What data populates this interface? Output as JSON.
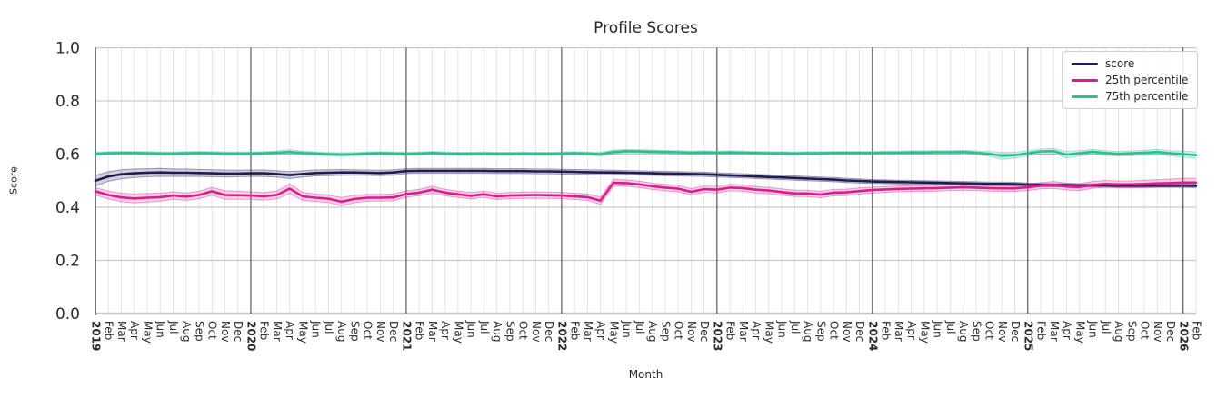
{
  "chart_data": {
    "type": "line",
    "title": "Profile Scores",
    "xlabel": "Month",
    "ylabel": "Score",
    "ylim": [
      0.0,
      1.0
    ],
    "yticks": [
      0.0,
      0.2,
      0.4,
      0.6,
      0.8,
      1.0
    ],
    "grid": true,
    "legend_position": "upper right",
    "x_labels": [
      "2019",
      "Feb",
      "Mar",
      "Apr",
      "May",
      "Jun",
      "Jul",
      "Aug",
      "Sep",
      "Oct",
      "Nov",
      "Dec",
      "2020",
      "Feb",
      "Mar",
      "Apr",
      "May",
      "Jun",
      "Jul",
      "Aug",
      "Sep",
      "Oct",
      "Nov",
      "Dec",
      "2021",
      "Feb",
      "Mar",
      "Apr",
      "May",
      "Jun",
      "Jul",
      "Aug",
      "Sep",
      "Oct",
      "Nov",
      "Dec",
      "2022",
      "Feb",
      "Mar",
      "Apr",
      "May",
      "Jun",
      "Jul",
      "Aug",
      "Sep",
      "Oct",
      "Nov",
      "Dec",
      "2023",
      "Feb",
      "Mar",
      "Apr",
      "May",
      "Jun",
      "Jul",
      "Aug",
      "Sep",
      "Oct",
      "Nov",
      "Dec",
      "2024",
      "Feb",
      "Mar",
      "Apr",
      "May",
      "Jun",
      "Jul",
      "Aug",
      "Sep",
      "Oct",
      "Nov",
      "Dec",
      "2025",
      "Feb",
      "Mar",
      "Apr",
      "May",
      "Jun",
      "Jul",
      "Aug",
      "Sep",
      "Oct",
      "Nov",
      "Dec",
      "2026",
      "Feb"
    ],
    "year_line_indices": [
      12,
      24,
      36,
      48,
      60,
      72,
      84
    ],
    "series": [
      {
        "name": "score",
        "color": "#1e1c52",
        "values": [
          0.5,
          0.516,
          0.524,
          0.528,
          0.53,
          0.531,
          0.53,
          0.53,
          0.529,
          0.528,
          0.527,
          0.527,
          0.528,
          0.528,
          0.525,
          0.521,
          0.525,
          0.529,
          0.53,
          0.531,
          0.531,
          0.53,
          0.529,
          0.531,
          0.536,
          0.537,
          0.537,
          0.537,
          0.537,
          0.537,
          0.537,
          0.536,
          0.536,
          0.536,
          0.535,
          0.535,
          0.534,
          0.533,
          0.532,
          0.531,
          0.531,
          0.53,
          0.529,
          0.528,
          0.527,
          0.526,
          0.525,
          0.524,
          0.522,
          0.52,
          0.518,
          0.516,
          0.514,
          0.512,
          0.51,
          0.508,
          0.506,
          0.504,
          0.501,
          0.499,
          0.497,
          0.496,
          0.495,
          0.494,
          0.493,
          0.492,
          0.491,
          0.49,
          0.489,
          0.488,
          0.488,
          0.487,
          0.485,
          0.484,
          0.483,
          0.483,
          0.482,
          0.482,
          0.482,
          0.481,
          0.481,
          0.481,
          0.481,
          0.481,
          0.481,
          0.48
        ],
        "band_halfwidth": [
          0.02,
          0.018,
          0.017,
          0.016,
          0.015,
          0.015,
          0.014,
          0.014,
          0.013,
          0.013,
          0.013,
          0.012,
          0.012,
          0.012,
          0.012,
          0.013,
          0.012,
          0.011,
          0.011,
          0.011,
          0.01,
          0.01,
          0.01,
          0.01,
          0.009,
          0.009,
          0.009,
          0.009,
          0.009,
          0.009,
          0.009,
          0.009,
          0.009,
          0.009,
          0.009,
          0.009,
          0.009,
          0.009,
          0.009,
          0.009,
          0.008,
          0.008,
          0.008,
          0.008,
          0.008,
          0.008,
          0.008,
          0.008,
          0.008,
          0.008,
          0.008,
          0.008,
          0.008,
          0.008,
          0.008,
          0.008,
          0.008,
          0.008,
          0.008,
          0.008,
          0.007,
          0.007,
          0.007,
          0.007,
          0.007,
          0.007,
          0.007,
          0.007,
          0.007,
          0.007,
          0.007,
          0.007,
          0.006,
          0.006,
          0.006,
          0.006,
          0.006,
          0.006,
          0.006,
          0.006,
          0.006,
          0.006,
          0.006,
          0.006,
          0.006,
          0.006
        ]
      },
      {
        "name": "25th percentile",
        "color": "#d81e8c",
        "values": [
          0.46,
          0.446,
          0.437,
          0.433,
          0.436,
          0.438,
          0.444,
          0.44,
          0.446,
          0.46,
          0.446,
          0.445,
          0.444,
          0.441,
          0.446,
          0.47,
          0.441,
          0.436,
          0.432,
          0.421,
          0.431,
          0.436,
          0.436,
          0.437,
          0.45,
          0.455,
          0.466,
          0.455,
          0.449,
          0.443,
          0.449,
          0.441,
          0.444,
          0.445,
          0.446,
          0.445,
          0.444,
          0.441,
          0.438,
          0.425,
          0.492,
          0.491,
          0.486,
          0.479,
          0.474,
          0.47,
          0.458,
          0.468,
          0.466,
          0.474,
          0.472,
          0.466,
          0.463,
          0.457,
          0.452,
          0.452,
          0.448,
          0.455,
          0.456,
          0.461,
          0.465,
          0.467,
          0.469,
          0.47,
          0.471,
          0.472,
          0.474,
          0.475,
          0.474,
          0.472,
          0.471,
          0.471,
          0.475,
          0.481,
          0.484,
          0.478,
          0.476,
          0.484,
          0.488,
          0.486,
          0.486,
          0.488,
          0.49,
          0.491,
          0.493,
          0.493
        ],
        "band_halfwidth": [
          0.014,
          0.015,
          0.016,
          0.017,
          0.016,
          0.015,
          0.014,
          0.014,
          0.014,
          0.015,
          0.016,
          0.015,
          0.014,
          0.014,
          0.015,
          0.018,
          0.015,
          0.014,
          0.014,
          0.016,
          0.014,
          0.013,
          0.013,
          0.013,
          0.012,
          0.012,
          0.013,
          0.012,
          0.012,
          0.012,
          0.012,
          0.012,
          0.012,
          0.012,
          0.012,
          0.012,
          0.012,
          0.012,
          0.012,
          0.014,
          0.013,
          0.012,
          0.012,
          0.012,
          0.012,
          0.012,
          0.012,
          0.012,
          0.012,
          0.012,
          0.012,
          0.012,
          0.012,
          0.012,
          0.012,
          0.012,
          0.012,
          0.012,
          0.012,
          0.012,
          0.011,
          0.011,
          0.011,
          0.011,
          0.011,
          0.011,
          0.011,
          0.011,
          0.011,
          0.011,
          0.011,
          0.011,
          0.012,
          0.012,
          0.013,
          0.013,
          0.013,
          0.013,
          0.013,
          0.013,
          0.013,
          0.014,
          0.014,
          0.015,
          0.016,
          0.016
        ]
      },
      {
        "name": "75th percentile",
        "color": "#2fbd96",
        "values": [
          0.601,
          0.603,
          0.604,
          0.604,
          0.603,
          0.602,
          0.602,
          0.603,
          0.604,
          0.603,
          0.602,
          0.602,
          0.602,
          0.603,
          0.605,
          0.608,
          0.604,
          0.602,
          0.6,
          0.598,
          0.6,
          0.602,
          0.603,
          0.602,
          0.601,
          0.602,
          0.604,
          0.602,
          0.601,
          0.601,
          0.602,
          0.601,
          0.601,
          0.602,
          0.601,
          0.601,
          0.602,
          0.603,
          0.602,
          0.6,
          0.608,
          0.611,
          0.61,
          0.609,
          0.608,
          0.607,
          0.605,
          0.606,
          0.605,
          0.606,
          0.605,
          0.604,
          0.603,
          0.603,
          0.602,
          0.603,
          0.603,
          0.604,
          0.604,
          0.604,
          0.604,
          0.605,
          0.605,
          0.606,
          0.606,
          0.607,
          0.607,
          0.608,
          0.605,
          0.601,
          0.593,
          0.596,
          0.603,
          0.61,
          0.611,
          0.598,
          0.603,
          0.609,
          0.604,
          0.601,
          0.603,
          0.605,
          0.608,
          0.603,
          0.6,
          0.596
        ],
        "band_halfwidth": [
          0.006,
          0.006,
          0.006,
          0.006,
          0.006,
          0.006,
          0.006,
          0.006,
          0.006,
          0.006,
          0.006,
          0.006,
          0.006,
          0.006,
          0.007,
          0.008,
          0.007,
          0.006,
          0.006,
          0.007,
          0.006,
          0.006,
          0.006,
          0.006,
          0.006,
          0.006,
          0.006,
          0.006,
          0.006,
          0.006,
          0.006,
          0.006,
          0.006,
          0.006,
          0.006,
          0.006,
          0.006,
          0.006,
          0.006,
          0.007,
          0.007,
          0.006,
          0.006,
          0.006,
          0.006,
          0.006,
          0.006,
          0.006,
          0.006,
          0.006,
          0.006,
          0.006,
          0.006,
          0.006,
          0.006,
          0.006,
          0.006,
          0.006,
          0.006,
          0.006,
          0.006,
          0.006,
          0.006,
          0.006,
          0.006,
          0.006,
          0.006,
          0.006,
          0.007,
          0.009,
          0.013,
          0.011,
          0.009,
          0.009,
          0.01,
          0.012,
          0.01,
          0.009,
          0.009,
          0.009,
          0.009,
          0.009,
          0.01,
          0.01,
          0.011,
          0.012
        ]
      }
    ]
  }
}
